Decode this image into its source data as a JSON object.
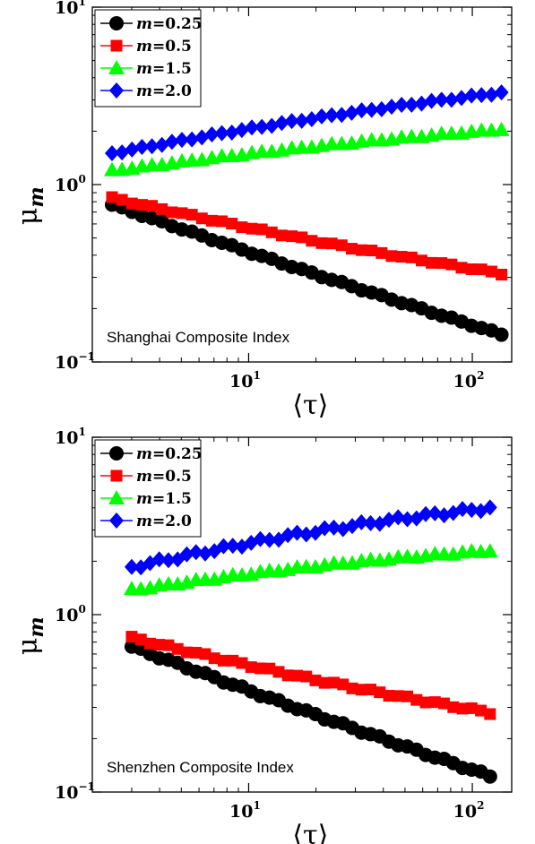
{
  "chart_data": [
    {
      "type": "scatter",
      "xscale": "log",
      "yscale": "log",
      "xlim": [
        2,
        150
      ],
      "ylim": [
        0.1,
        10
      ],
      "xlabel": "⟨τ⟩",
      "ylabel": "μ",
      "ylabel_sub": "m",
      "xticks": [
        {
          "value": 10,
          "base": "10",
          "exp": "1"
        },
        {
          "value": 100,
          "base": "10",
          "exp": "2"
        }
      ],
      "yticks": [
        {
          "value": 0.1,
          "base": "10",
          "exp": "−1"
        },
        {
          "value": 1,
          "base": "10",
          "exp": "0"
        },
        {
          "value": 10,
          "base": "10",
          "exp": "1"
        }
      ],
      "annotation": "Shanghai Composite Index",
      "legend_position": "top-left",
      "x_range": [
        2.45,
        135
      ],
      "series": [
        {
          "name": "m=0.25",
          "legend_var": "m",
          "legend_val": "=0.25",
          "color": "#000000",
          "marker": "circle",
          "y_start": 0.77,
          "y_end": 0.143,
          "bend": -0.01,
          "wiggle": 0.005
        },
        {
          "name": "m=0.5",
          "legend_var": "m",
          "legend_val": "=0.5",
          "color": "#ff0000",
          "marker": "square",
          "y_start": 0.84,
          "y_end": 0.315,
          "bend": -0.02,
          "wiggle": 0.006
        },
        {
          "name": "m=1.5",
          "legend_var": "m",
          "legend_val": "=1.5",
          "color": "#00ff00",
          "marker": "triangle",
          "y_start": 1.2,
          "y_end": 2.05,
          "bend": 0.015,
          "wiggle": 0.004
        },
        {
          "name": "m=2.0",
          "legend_var": "m",
          "legend_val": "=2.0",
          "color": "#0000ff",
          "marker": "diamond",
          "y_start": 1.5,
          "y_end": 3.3,
          "bend": 0.02,
          "wiggle": 0.005
        }
      ]
    },
    {
      "type": "scatter",
      "xscale": "log",
      "yscale": "log",
      "xlim": [
        2,
        150
      ],
      "ylim": [
        0.1,
        10
      ],
      "xlabel": "⟨τ⟩",
      "ylabel": "μ",
      "ylabel_sub": "m",
      "xticks": [
        {
          "value": 10,
          "base": "10",
          "exp": "1"
        },
        {
          "value": 100,
          "base": "10",
          "exp": "2"
        }
      ],
      "yticks": [
        {
          "value": 0.1,
          "base": "10",
          "exp": "−1"
        },
        {
          "value": 1,
          "base": "10",
          "exp": "0"
        },
        {
          "value": 10,
          "base": "10",
          "exp": "1"
        }
      ],
      "annotation": "Shenzhen Composite Index",
      "legend_position": "top-left",
      "x_range": [
        3.0,
        120
      ],
      "series": [
        {
          "name": "m=0.25",
          "legend_var": "m",
          "legend_val": "=0.25",
          "color": "#000000",
          "marker": "circle",
          "y_start": 0.66,
          "y_end": 0.123,
          "bend": -0.01,
          "wiggle": 0.008
        },
        {
          "name": "m=0.5",
          "legend_var": "m",
          "legend_val": "=0.5",
          "color": "#ff0000",
          "marker": "square",
          "y_start": 0.74,
          "y_end": 0.28,
          "bend": -0.02,
          "wiggle": 0.008
        },
        {
          "name": "m=1.5",
          "legend_var": "m",
          "legend_val": "=1.5",
          "color": "#00ff00",
          "marker": "triangle",
          "y_start": 1.38,
          "y_end": 2.3,
          "bend": 0.02,
          "wiggle": 0.006
        },
        {
          "name": "m=2.0",
          "legend_var": "m",
          "legend_val": "=2.0",
          "color": "#0000ff",
          "marker": "diamond",
          "y_start": 1.85,
          "y_end": 4.0,
          "bend": 0.03,
          "wiggle": 0.012
        }
      ]
    }
  ]
}
